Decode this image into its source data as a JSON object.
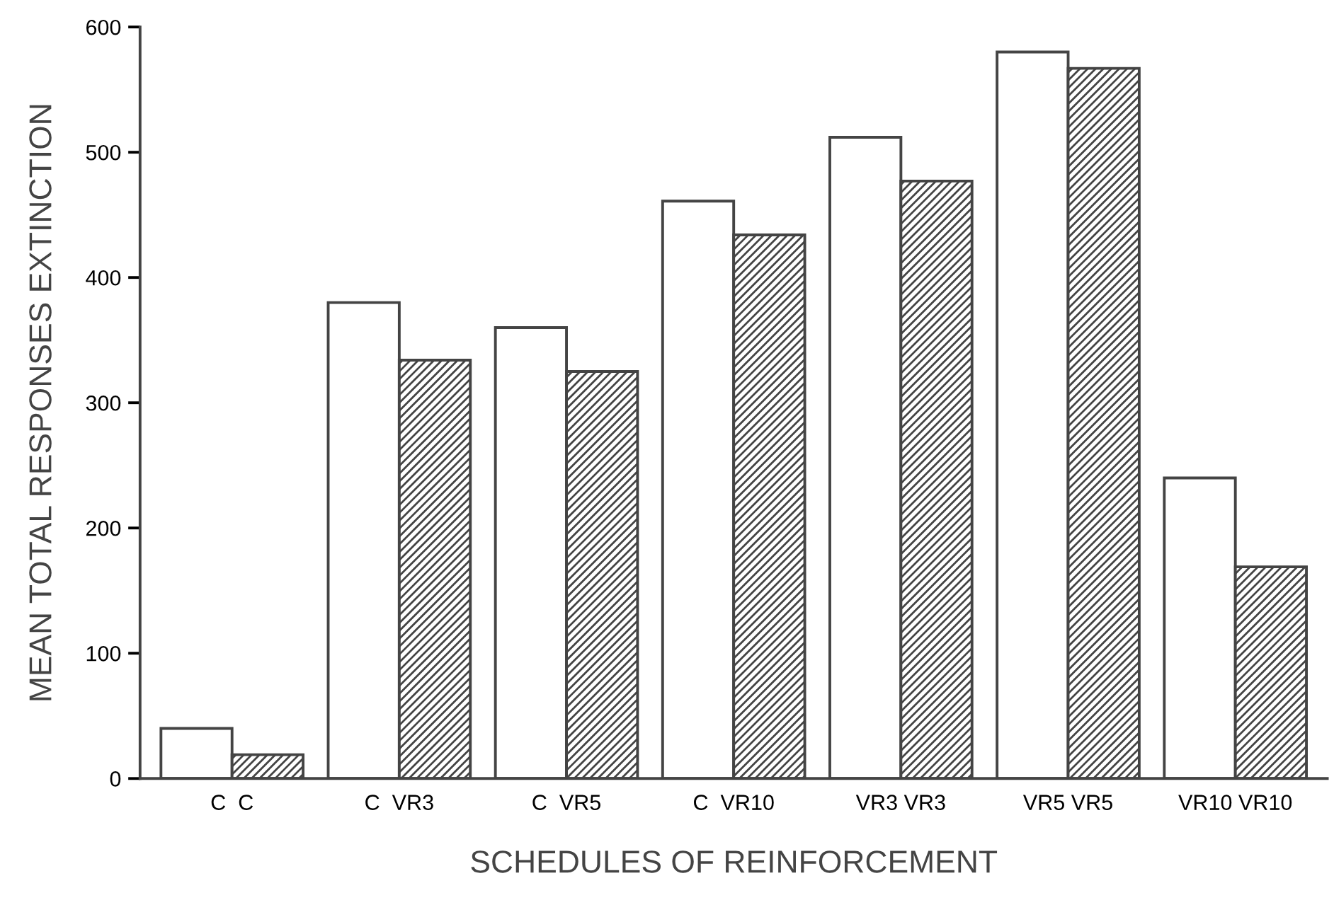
{
  "chart_data": {
    "type": "bar",
    "xlabel": "SCHEDULES OF REINFORCEMENT",
    "ylabel": "MEAN TOTAL RESPONSES EXTINCTION",
    "categories": [
      "C  C",
      "C  VR3",
      "C  VR5",
      "C  VR10",
      "VR3 VR3",
      "VR5 VR5",
      "VR10 VR10"
    ],
    "series": [
      {
        "color": "#ffffff",
        "values": [
          40,
          380,
          360,
          461,
          512,
          580,
          240
        ]
      },
      {
        "color": "#444444",
        "values": [
          19,
          334,
          325,
          434,
          477,
          567,
          169
        ]
      }
    ],
    "ylim": [
      0,
      600
    ],
    "yticks": [
      0,
      100,
      200,
      300,
      400,
      500,
      600
    ],
    "grid": false,
    "legend": false
  }
}
